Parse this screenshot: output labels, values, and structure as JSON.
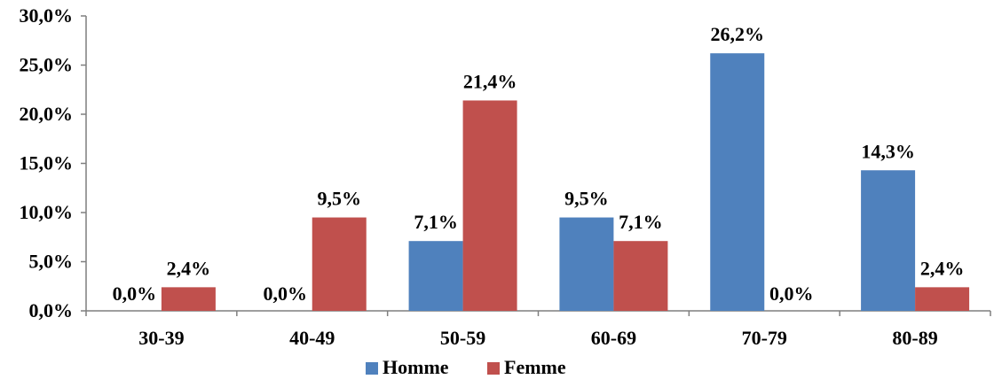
{
  "chart_data": {
    "type": "bar",
    "categories": [
      "30-39",
      "40-49",
      "50-59",
      "60-69",
      "70-79",
      "80-89"
    ],
    "series": [
      {
        "name": "Homme",
        "color": "#4F81BD",
        "values": [
          0.0,
          0.0,
          7.1,
          9.5,
          26.2,
          14.3
        ],
        "labels": [
          "0,0%",
          "0,0%",
          "7,1%",
          "9,5%",
          "26,2%",
          "14,3%"
        ]
      },
      {
        "name": "Femme",
        "color": "#C0504D",
        "values": [
          2.4,
          9.5,
          21.4,
          7.1,
          0.0,
          2.4
        ],
        "labels": [
          "2,4%",
          "9,5%",
          "21,4%",
          "7,1%",
          "0,0%",
          "2,4%"
        ]
      }
    ],
    "ylim": [
      0,
      30
    ],
    "yticks": [
      0,
      5,
      10,
      15,
      20,
      25,
      30
    ],
    "ytick_labels": [
      "0,0%",
      "5,0%",
      "10,0%",
      "15,0%",
      "20,0%",
      "25,0%",
      "30,0%"
    ],
    "legend_position": "bottom",
    "grid": false,
    "title": "",
    "xlabel": "",
    "ylabel": ""
  }
}
